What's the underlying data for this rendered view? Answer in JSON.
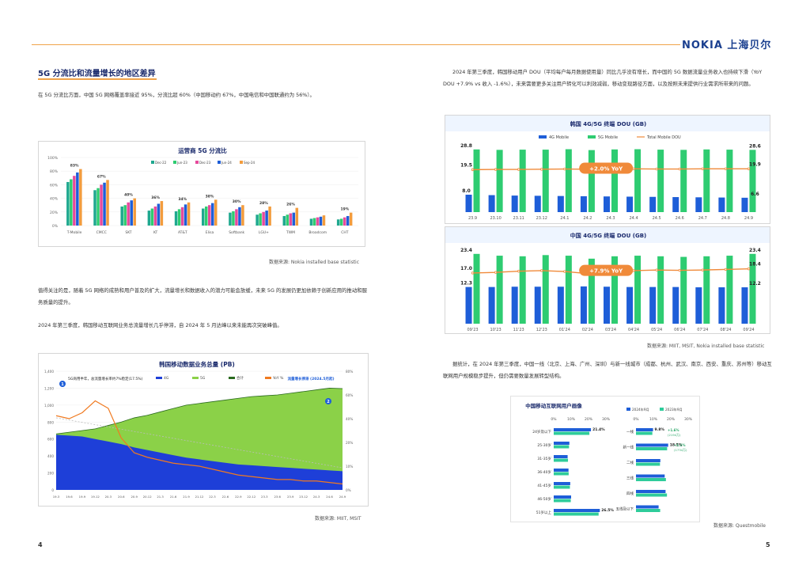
{
  "header": {
    "logo": "NOKIA 上海贝尔"
  },
  "left": {
    "section_title": "5G 分流比和流量增长的地区差异",
    "para1": "在 5G 分流比方面，中国 5G 网络覆盖率接近 95%，分流比超 60%（中国移动约 67%，中国电信和中国联通约为 56%）。",
    "para2": "值得关注的是，随着 5G 网络的成熟和用户普及的扩大，流量增长和数据收入的潜力可能会放缓，未来 5G 的发展仍更加依赖于创新应用的推动和服务质量的提升。",
    "para3": "2024 年第三季度，韩国移动互联网业务总流量增长几乎停滞，自 2024 年 5 月达峰以来未能再次突破峰值。",
    "source1": "数据来源: Nokia installed base statistic",
    "source2": "数据来源: MIIT, MSIT",
    "page_number": "4"
  },
  "right": {
    "para1": "2024 年第三季度，韩国移动用户 DOU（平均每户每月数据使用量）同比几乎没有增长，而中国的 5G 数据流量业务收入也持续下滑（YoY DOU +7.9% vs 收入 -1.6%），未来需要更多关注用户转化可以利效减弱，移动变现路径方面，以及按照未来提供行业需求所带来的问题。",
    "para2": "据统计，在 2024 年第三季度，中国一线（北京、上海、广州、深圳）与新一线城市（成都、杭州、武汉、南京、西安、重庆、苏州等）移动互联网用户规模稳步提升，但仍需要数量发展转型结构。",
    "source1": "数据来源: MIIT, MSIT, Nokia installed base statistic",
    "source2": "数据来源: Questmobile",
    "page_number": "5"
  },
  "chart_data": [
    {
      "type": "bar",
      "title": "运营商 5G 分流比",
      "categories": [
        "T-Mobile",
        "CMCC",
        "SKT",
        "KT",
        "AT&T",
        "Elisa",
        "Softbank",
        "LGU+",
        "TWM",
        "Broadcom",
        "CHT"
      ],
      "series": [
        {
          "name": "Dec-22",
          "color": "#1fa88f",
          "values": [
            64,
            52,
            28,
            22,
            21,
            25,
            19,
            16,
            14,
            10,
            9
          ]
        },
        {
          "name": "Jun-23",
          "color": "#2ecc71",
          "values": [
            68,
            55,
            30,
            25,
            24,
            28,
            21,
            18,
            16,
            11,
            10
          ]
        },
        {
          "name": "Dec-23",
          "color": "#e64a9c",
          "values": [
            73,
            60,
            34,
            28,
            27,
            30,
            24,
            20,
            18,
            12,
            12
          ]
        },
        {
          "name": "Jun-24",
          "color": "#1e5ed8",
          "values": [
            78,
            63,
            37,
            32,
            31,
            33,
            27,
            22,
            19,
            13,
            14
          ]
        },
        {
          "name": "Sep-24",
          "color": "#f39c3d",
          "values": [
            83,
            67,
            40,
            36,
            34,
            38,
            30,
            28,
            26,
            15,
            19
          ]
        }
      ],
      "data_labels": [
        "83%",
        "67%",
        "40%",
        "36%",
        "34%",
        "38%",
        "30%",
        "28%",
        "26%",
        "",
        "19%"
      ],
      "ylim": [
        0,
        100
      ],
      "yticks": [
        "100%",
        "80%",
        "60%",
        "40%",
        "20%",
        "0%"
      ]
    },
    {
      "type": "bar",
      "title": "韩国 4G/5G 终端 DOU (GB)",
      "categories": [
        "23.9",
        "23.10",
        "23.11",
        "23.12",
        "24.1",
        "24.2",
        "24.3",
        "24.4",
        "24.5",
        "24.6",
        "24.7",
        "24.8",
        "24.9"
      ],
      "series": [
        {
          "name": "4G Mobile",
          "color": "#1e5ed8",
          "values": [
            8.0,
            7.8,
            7.6,
            7.5,
            7.4,
            7.3,
            7.2,
            7.1,
            7.0,
            6.9,
            6.8,
            6.7,
            6.6
          ]
        },
        {
          "name": "5G Mobile",
          "color": "#2ecc71",
          "values": [
            28.8,
            28.6,
            28.7,
            28.7,
            28.9,
            28.5,
            28.8,
            28.9,
            28.7,
            28.6,
            28.8,
            28.7,
            28.6
          ]
        },
        {
          "name": "Total Mobile DOU",
          "color": "#f08a3a",
          "values": [
            19.5,
            19.6,
            19.6,
            19.7,
            19.8,
            19.7,
            19.8,
            19.9,
            19.8,
            19.8,
            19.9,
            19.9,
            19.9
          ]
        }
      ],
      "data_labels": {
        "first_5g": "28.8",
        "first_total": "19.5",
        "first_4g": "8.0",
        "last_5g": "28.6",
        "last_total": "19.9",
        "last_4g": "6.6"
      },
      "annotation": "+2.0% YoY",
      "ylim": [
        0,
        32
      ]
    },
    {
      "type": "bar",
      "title": "中国 4G/5G 终端 DOU (GB)",
      "categories": [
        "09'23",
        "10'23",
        "11'23",
        "12'23",
        "01'24",
        "02'24",
        "03'24",
        "04'24",
        "05'24",
        "06'24",
        "07'24",
        "08'24",
        "09'24"
      ],
      "series": [
        {
          "name": "4G",
          "color": "#1e5ed8",
          "values": [
            12.3,
            12.3,
            12.4,
            12.4,
            12.4,
            12.5,
            12.4,
            12.3,
            12.3,
            12.3,
            12.2,
            12.2,
            12.2
          ]
        },
        {
          "name": "5G",
          "color": "#2ecc71",
          "values": [
            23.4,
            22.8,
            22.6,
            23.0,
            22.8,
            21.8,
            22.6,
            22.8,
            22.6,
            22.4,
            22.6,
            22.8,
            23.4
          ]
        },
        {
          "name": "Total",
          "color": "#f08a3a",
          "values": [
            17.0,
            17.2,
            17.6,
            17.8,
            17.5,
            16.8,
            17.6,
            17.8,
            18.0,
            17.9,
            18.0,
            18.2,
            18.4
          ]
        }
      ],
      "data_labels": {
        "first_5g": "23.4",
        "first_total": "17.0",
        "first_4g": "12.3",
        "last_5g": "23.4",
        "last_total": "18.4",
        "last_4g": "12.2"
      },
      "annotation": "+7.9% YoY",
      "ylim": [
        0,
        26
      ]
    },
    {
      "type": "area",
      "title": "韩国移动数据业务总量 (PB)",
      "legend": [
        "4G",
        "5G",
        "合计",
        "YoY %"
      ],
      "colors": {
        "4G": "#1e3fd8",
        "5G": "#8bd148",
        "合计": "#2a6a1f",
        "YoY %": "#f07a20"
      },
      "x": [
        "19.3",
        "19.6",
        "19.9",
        "19.12",
        "20.3",
        "20.6",
        "20.9",
        "20.12",
        "21.3",
        "21.6",
        "21.9",
        "21.12",
        "22.3",
        "22.6",
        "22.9",
        "22.12",
        "23.3",
        "23.6",
        "23.9",
        "23.12",
        "24.3",
        "24.6",
        "24.9"
      ],
      "series": [
        {
          "name": "4G",
          "values": [
            650,
            640,
            630,
            600,
            570,
            540,
            500,
            470,
            440,
            410,
            380,
            360,
            340,
            320,
            300,
            290,
            280,
            270,
            260,
            250,
            240,
            230,
            220
          ]
        },
        {
          "name": "合计",
          "values": [
            660,
            680,
            700,
            720,
            760,
            800,
            850,
            880,
            920,
            960,
            1000,
            1020,
            1040,
            1060,
            1080,
            1100,
            1110,
            1120,
            1140,
            1160,
            1180,
            1200,
            1195
          ]
        },
        {
          "name": "YoY %",
          "values": [
            50,
            48,
            52,
            60,
            55,
            35,
            25,
            22,
            20,
            18,
            17,
            16,
            14,
            12,
            10,
            9,
            8,
            7,
            7,
            6,
            6,
            5,
            4
          ]
        }
      ],
      "annotations": [
        "5G商用半年，总流量增长率约7%稳定(17.5%)",
        "流量增长停滞 (2024.5月起)"
      ],
      "ylim": [
        0,
        1400
      ],
      "y2lim": [
        0,
        80
      ],
      "yticks": [
        "1,400",
        "1,200",
        "1,000",
        "800",
        "600",
        "400",
        "200",
        "0"
      ],
      "y2ticks": [
        "80%",
        "60%",
        "40%",
        "20%",
        "10%",
        "0%"
      ]
    },
    {
      "type": "bar",
      "title": "中国移动互联网用户画像",
      "legend": [
        "2024年9月",
        "2023年9月"
      ],
      "colors": {
        "2024年9月": "#1e5ed8",
        "2023年9月": "#2ecc9a"
      },
      "xticks": [
        "0%",
        "10%",
        "20%",
        "30%"
      ],
      "left_group": {
        "categories": [
          "24岁及以下",
          "25-30岁",
          "31-35岁",
          "36-40岁",
          "41-45岁",
          "46-50岁",
          "51岁以上"
        ],
        "values_2024": [
          21.4,
          9.0,
          8.0,
          8.5,
          9.5,
          10.0,
          26.5
        ],
        "values_2023": [
          20.5,
          8.8,
          8.2,
          8.6,
          9.3,
          9.8,
          25.8
        ],
        "labels": [
          "21.4%",
          "",
          "",
          "",
          "",
          "",
          "26.5%"
        ]
      },
      "right_group": {
        "categories": [
          "一线",
          "新一线",
          "二线",
          "三线",
          "四线",
          "五线及以下"
        ],
        "values_2024": [
          9.8,
          18.5,
          14.0,
          16.5,
          17.0,
          13.0
        ],
        "values_2023": [
          9.4,
          17.9,
          13.8,
          17.2,
          17.8,
          13.9
        ],
        "labels": [
          "9.8%",
          "18.5%",
          "",
          "",
          "",
          ""
        ],
        "notes": [
          "+1.6%",
          "(2194万)",
          "+1.1%",
          "(1734万)"
        ]
      }
    }
  ]
}
